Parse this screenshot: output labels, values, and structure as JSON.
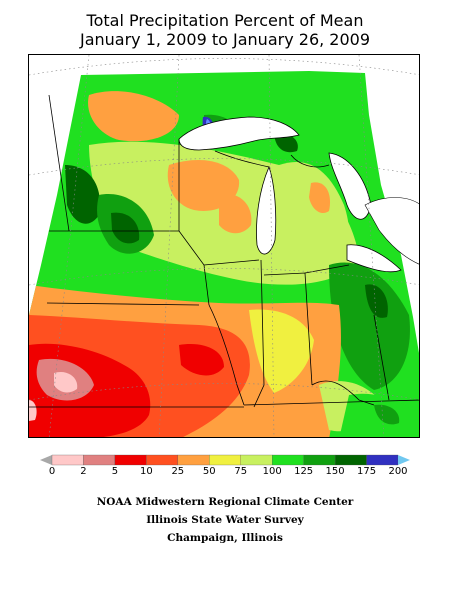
{
  "title": {
    "line1": "Total Precipitation Percent of Mean",
    "line2": "January 1, 2009 to January 26, 2009"
  },
  "legend": {
    "ticks": [
      "0",
      "2",
      "5",
      "10",
      "25",
      "50",
      "75",
      "100",
      "125",
      "150",
      "175",
      "200"
    ],
    "colors": [
      "#a8a8a8",
      "#ffc8c8",
      "#e08080",
      "#f00000",
      "#ff5020",
      "#ffa040",
      "#f0f040",
      "#c8f060",
      "#20e020",
      "#10a010",
      "#006400",
      "#3030c0",
      "#6088ff",
      "#70c8f0"
    ]
  },
  "map": {
    "fill_colors": {
      "pink": "#ffc8c8",
      "rose": "#e08080",
      "red": "#f00000",
      "orange_red": "#ff5020",
      "orange": "#ffa040",
      "yellow": "#f0f040",
      "yellow_green": "#c8f060",
      "green": "#20e020",
      "mid_green": "#10a010",
      "dark_green": "#006400",
      "blue": "#3030c0",
      "light_blue": "#6088ff"
    }
  },
  "footer": {
    "line1": "NOAA Midwestern Regional Climate Center",
    "line2": "Illinois State Water Survey",
    "line3": "Champaign, Illinois"
  }
}
